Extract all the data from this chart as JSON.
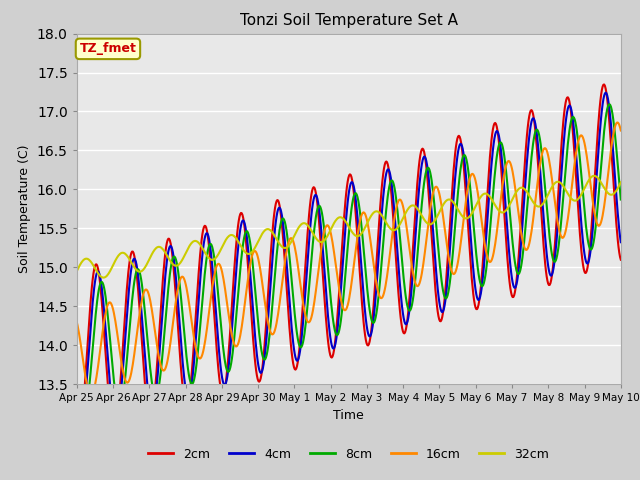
{
  "title": "Tonzi Soil Temperature Set A",
  "xlabel": "Time",
  "ylabel": "Soil Temperature (C)",
  "ylim": [
    13.5,
    18.0
  ],
  "series_colors": {
    "2cm": "#dd0000",
    "4cm": "#0000cc",
    "8cm": "#00aa00",
    "16cm": "#ff8800",
    "32cm": "#cccc00"
  },
  "annotation_text": "TZ_fmet",
  "annotation_color": "#cc0000",
  "annotation_bg": "#ffffcc",
  "annotation_border": "#999900",
  "fig_bg_color": "#d0d0d0",
  "plot_bg_color": "#e8e8e8",
  "tick_labels": [
    "Apr 25",
    "Apr 26",
    "Apr 27",
    "Apr 28",
    "Apr 29",
    "Apr 30",
    "May 1",
    "May 2",
    "May 3",
    "May 4",
    "May 5",
    "May 6",
    "May 7",
    "May 8",
    "May 9",
    "May 10"
  ],
  "n_points": 720,
  "legend_labels": [
    "2cm",
    "4cm",
    "8cm",
    "16cm",
    "32cm"
  ]
}
